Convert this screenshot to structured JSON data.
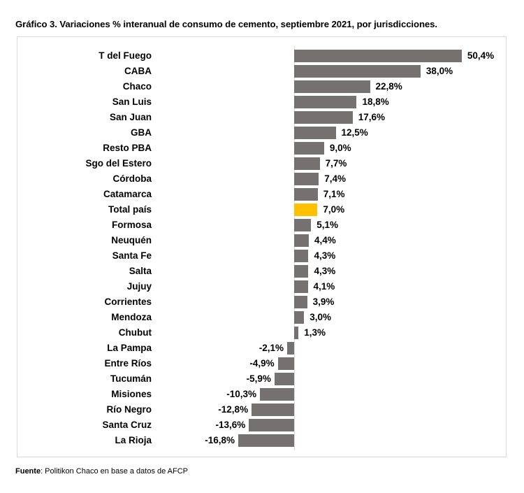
{
  "title": "Gráfico 3. Variaciones % interanual de consumo de cemento, septiembre 2021, por jurisdicciones.",
  "source": {
    "label": "Fuente",
    "text": ": Politikon Chaco en base a datos de AFCP"
  },
  "colors": {
    "bar": "#767171",
    "highlight": "#FFC000",
    "frame": "#d9d9d9"
  },
  "chart_data": {
    "type": "bar",
    "orientation": "horizontal",
    "title": "Gráfico 3. Variaciones % interanual de consumo de cemento, septiembre 2021, por jurisdicciones.",
    "xlabel": "",
    "ylabel": "",
    "unit": "%",
    "grid": false,
    "legend": null,
    "highlight_category": "Total país",
    "categories": [
      "T del Fuego",
      "CABA",
      "Chaco",
      "San Luis",
      "San Juan",
      "GBA",
      "Resto PBA",
      "Sgo del Estero",
      "Córdoba",
      "Catamarca",
      "Total país",
      "Formosa",
      "Neuquén",
      "Santa Fe",
      "Salta",
      "Jujuy",
      "Corrientes",
      "Mendoza",
      "Chubut",
      "La Pampa",
      "Entre Ríos",
      "Tucumán",
      "Misiones",
      "Río Negro",
      "Santa Cruz",
      "La Rioja"
    ],
    "values": [
      50.4,
      38.0,
      22.8,
      18.8,
      17.6,
      12.5,
      9.0,
      7.7,
      7.4,
      7.1,
      7.0,
      5.1,
      4.4,
      4.3,
      4.3,
      4.1,
      3.9,
      3.0,
      1.3,
      -2.1,
      -4.9,
      -5.9,
      -10.3,
      -12.8,
      -13.6,
      -16.8
    ],
    "labels": [
      "50,4%",
      "38,0%",
      "22,8%",
      "18,8%",
      "17,6%",
      "12,5%",
      "9,0%",
      "7,7%",
      "7,4%",
      "7,1%",
      "7,0%",
      "5,1%",
      "4,4%",
      "4,3%",
      "4,3%",
      "4,1%",
      "3,9%",
      "3,0%",
      "1,3%",
      "-2,1%",
      "-4,9%",
      "-5,9%",
      "-10,3%",
      "-12,8%",
      "-13,6%",
      "-16,8%"
    ],
    "xlim": [
      -16.8,
      50.4
    ]
  }
}
